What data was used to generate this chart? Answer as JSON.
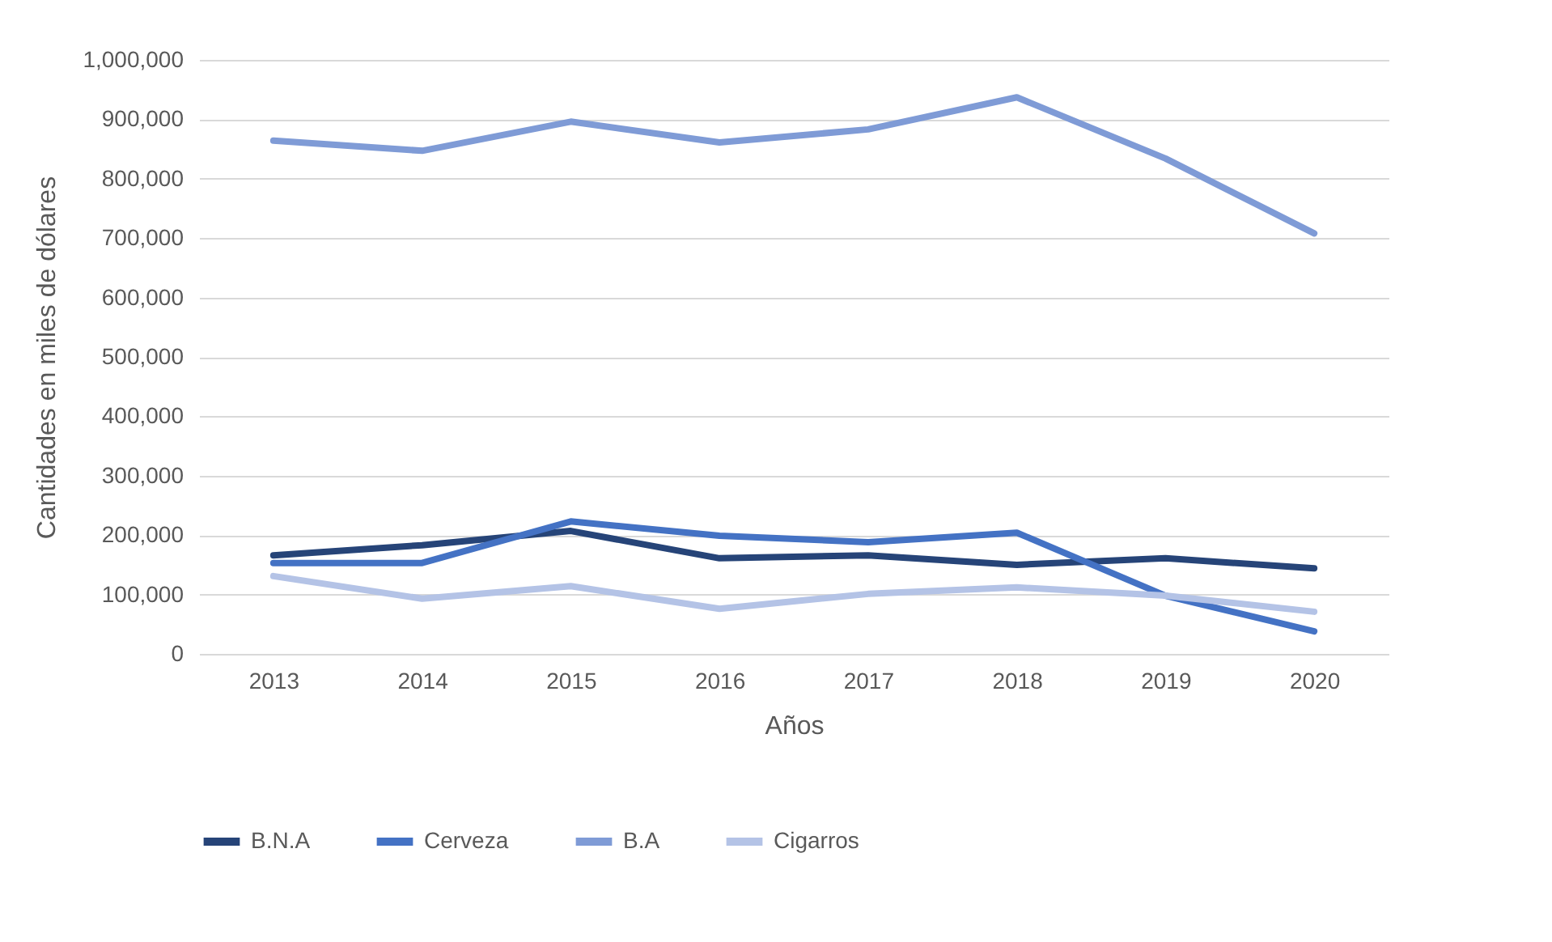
{
  "chart_data": {
    "type": "line",
    "xlabel": "Años",
    "ylabel": "Cantidades en miles de dólares",
    "categories": [
      "2013",
      "2014",
      "2015",
      "2016",
      "2017",
      "2018",
      "2019",
      "2020"
    ],
    "series": [
      {
        "name": "B.N.A",
        "color": "#264478",
        "values": [
          166000,
          183000,
          207000,
          161000,
          166000,
          150000,
          161000,
          144000
        ]
      },
      {
        "name": "Cerveza",
        "color": "#4472c4",
        "values": [
          153000,
          153000,
          223000,
          199000,
          188000,
          204000,
          98000,
          38000
        ]
      },
      {
        "name": "B.A",
        "color": "#7f9bd6",
        "values": [
          864000,
          847000,
          896000,
          861000,
          883000,
          937000,
          834000,
          708000
        ]
      },
      {
        "name": "Cigarros",
        "color": "#b4c3e6",
        "values": [
          131000,
          93000,
          114000,
          76000,
          101000,
          112000,
          98000,
          71000
        ]
      }
    ],
    "ylim": [
      0,
      1000000
    ],
    "yticks": [
      {
        "value": 0,
        "label": "0"
      },
      {
        "value": 100000,
        "label": "100,000"
      },
      {
        "value": 200000,
        "label": "200,000"
      },
      {
        "value": 300000,
        "label": "300,000"
      },
      {
        "value": 400000,
        "label": "400,000"
      },
      {
        "value": 500000,
        "label": "500,000"
      },
      {
        "value": 600000,
        "label": "600,000"
      },
      {
        "value": 700000,
        "label": "700,000"
      },
      {
        "value": 800000,
        "label": "800,000"
      },
      {
        "value": 900000,
        "label": "900,000"
      },
      {
        "value": 1000000,
        "label": "1,000,000"
      }
    ],
    "grid": "y",
    "legend": "bottom",
    "marker": "none",
    "line_style": "solid"
  }
}
